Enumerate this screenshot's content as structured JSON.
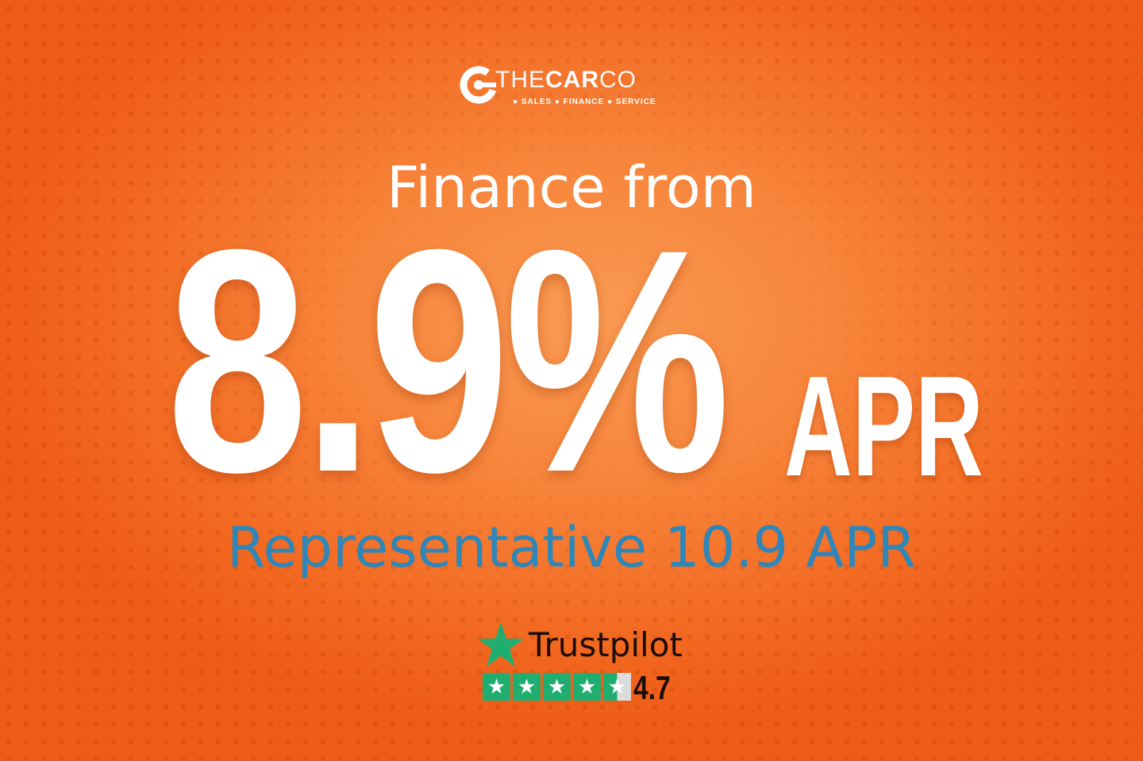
{
  "logo": {
    "brand": "THECARCO",
    "brand_light": "THE",
    "brand_bold": "CAR",
    "brand_tail": "CO",
    "tagline": "● SALES ● FINANCE ● SERVICE"
  },
  "headline": "Finance from",
  "rate": "8.9%",
  "rate_suffix": "APR",
  "representative": "Representative 10.9 APR",
  "trustpilot": {
    "name": "Trustpilot",
    "score": "4.7",
    "rating": 4.7,
    "max": 5,
    "color": "#1fae70"
  },
  "colors": {
    "background": "#f26522",
    "accent_blue": "#2f86b8"
  }
}
